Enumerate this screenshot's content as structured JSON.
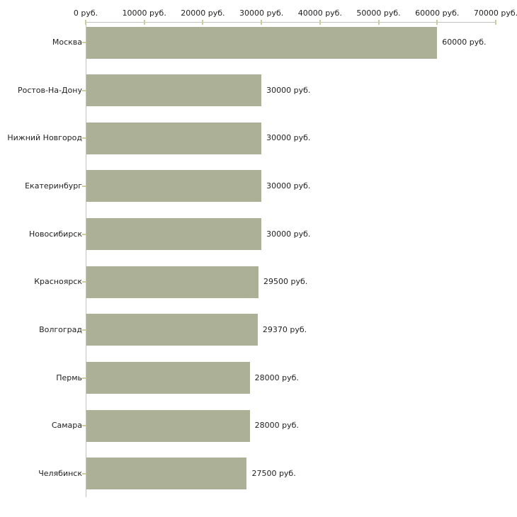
{
  "chart_data": {
    "type": "bar",
    "orientation": "horizontal",
    "title": "",
    "xlabel": "",
    "ylabel": "",
    "grid": false,
    "legend": null,
    "categories": [
      "Москва",
      "Ростов-На-Дону",
      "Нижний Новгород",
      "Екатеринбург",
      "Новосибирск",
      "Красноярск",
      "Волгоград",
      "Пермь",
      "Самара",
      "Челябинск"
    ],
    "values": [
      60000,
      30000,
      30000,
      30000,
      30000,
      29500,
      29370,
      28000,
      28000,
      27500
    ],
    "value_labels": [
      "60000 руб.",
      "30000 руб.",
      "30000 руб.",
      "30000 руб.",
      "30000 руб.",
      "29500 руб.",
      "29370 руб.",
      "28000 руб.",
      "28000 руб.",
      "27500 руб."
    ],
    "x_axis": {
      "min": 0,
      "max": 70000,
      "tick_step": 10000,
      "tick_labels": [
        "0 руб.",
        "10000 руб.",
        "20000 руб.",
        "30000 руб.",
        "40000 руб.",
        "50000 руб.",
        "60000 руб.",
        "70000 руб."
      ]
    },
    "colors": {
      "bar": "#abb096",
      "axis_line": "#c3c3c3",
      "tick_mark": "#cccc9f",
      "text": "#222222",
      "background": "#ffffff"
    }
  }
}
